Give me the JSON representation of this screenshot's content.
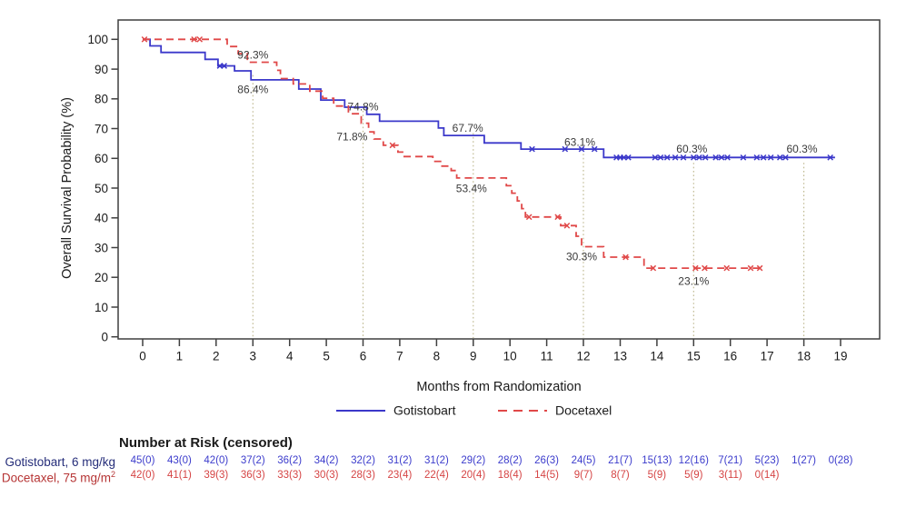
{
  "figure": {
    "background": "#ffffff"
  },
  "chart_data": {
    "type": "line",
    "subtype": "kaplan-meier-step",
    "title": "",
    "xlabel": "Months from Randomization",
    "ylabel": "Overall Survival Probability (%)",
    "xlim": [
      0,
      19
    ],
    "ylim": [
      0,
      100
    ],
    "xticks": [
      0,
      1,
      2,
      3,
      4,
      5,
      6,
      7,
      8,
      9,
      10,
      11,
      12,
      13,
      14,
      15,
      16,
      17,
      18,
      19
    ],
    "yticks": [
      0,
      10,
      20,
      30,
      40,
      50,
      60,
      70,
      80,
      90,
      100
    ],
    "grid_months": [
      3,
      6,
      9,
      12,
      15,
      18
    ],
    "grid_top_pct": [
      88,
      76,
      68.5,
      61.5,
      58.5,
      58.5
    ],
    "grid_color": "#bcb68c",
    "axis_color": "#3f3f3f",
    "annotation_color": "#3a3a3a",
    "series": [
      {
        "name": "Gotistobart",
        "color": "#3b38ca",
        "line_style": "solid",
        "steps": [
          [
            0.1,
            100
          ],
          [
            0.2,
            97.8
          ],
          [
            0.5,
            95.6
          ],
          [
            1.7,
            93.3
          ],
          [
            2.05,
            91.1
          ],
          [
            2.5,
            89.4
          ],
          [
            2.95,
            86.4
          ],
          [
            4.25,
            83.3
          ],
          [
            4.85,
            79.6
          ],
          [
            5.5,
            77.2
          ],
          [
            6.1,
            74.8
          ],
          [
            6.45,
            72.5
          ],
          [
            8.05,
            70.2
          ],
          [
            8.2,
            67.7
          ],
          [
            9.3,
            65.2
          ],
          [
            10.3,
            63.1
          ],
          [
            12.55,
            60.3
          ],
          [
            18.85,
            60.3
          ]
        ],
        "censor_marks": [
          [
            2.1,
            91.1
          ],
          [
            2.22,
            91.1
          ],
          [
            10.6,
            63.1
          ],
          [
            11.5,
            63.1
          ],
          [
            11.95,
            63.1
          ],
          [
            12.3,
            63.1
          ],
          [
            12.9,
            60.3
          ],
          [
            13.0,
            60.3
          ],
          [
            13.1,
            60.3
          ],
          [
            13.22,
            60.3
          ],
          [
            13.95,
            60.3
          ],
          [
            14.1,
            60.3
          ],
          [
            14.28,
            60.3
          ],
          [
            14.5,
            60.3
          ],
          [
            14.72,
            60.3
          ],
          [
            15.0,
            60.3
          ],
          [
            15.15,
            60.3
          ],
          [
            15.32,
            60.3
          ],
          [
            15.6,
            60.3
          ],
          [
            15.76,
            60.3
          ],
          [
            15.92,
            60.3
          ],
          [
            16.35,
            60.3
          ],
          [
            16.72,
            60.3
          ],
          [
            16.9,
            60.3
          ],
          [
            17.1,
            60.3
          ],
          [
            17.35,
            60.3
          ],
          [
            17.5,
            60.3
          ],
          [
            18.72,
            60.3
          ]
        ]
      },
      {
        "name": "Docetaxel",
        "color": "#e04848",
        "line_style": "dashed",
        "steps": [
          [
            0,
            100
          ],
          [
            2.3,
            97.6
          ],
          [
            2.6,
            95.2
          ],
          [
            2.85,
            92.3
          ],
          [
            3.65,
            89.6
          ],
          [
            3.75,
            86.8
          ],
          [
            4.1,
            85.0
          ],
          [
            4.55,
            82.6
          ],
          [
            4.9,
            80.2
          ],
          [
            5.2,
            77.6
          ],
          [
            5.6,
            75.0
          ],
          [
            5.95,
            71.8
          ],
          [
            6.15,
            68.9
          ],
          [
            6.3,
            66.5
          ],
          [
            6.55,
            64.4
          ],
          [
            6.95,
            62.1
          ],
          [
            7.1,
            60.6
          ],
          [
            7.9,
            59.0
          ],
          [
            8.15,
            57.4
          ],
          [
            8.4,
            55.9
          ],
          [
            8.55,
            53.4
          ],
          [
            9.9,
            50.8
          ],
          [
            10.05,
            48.3
          ],
          [
            10.2,
            45.7
          ],
          [
            10.32,
            43.1
          ],
          [
            10.42,
            40.3
          ],
          [
            11.38,
            37.4
          ],
          [
            11.8,
            33.8
          ],
          [
            11.95,
            30.3
          ],
          [
            12.55,
            26.8
          ],
          [
            13.65,
            23.1
          ],
          [
            16.85,
            23.1
          ]
        ],
        "censor_marks": [
          [
            0.05,
            100
          ],
          [
            1.4,
            100
          ],
          [
            1.55,
            100
          ],
          [
            6.8,
            64.4
          ],
          [
            10.52,
            40.3
          ],
          [
            11.3,
            40.3
          ],
          [
            11.55,
            37.4
          ],
          [
            13.15,
            26.8
          ],
          [
            13.9,
            23.1
          ],
          [
            15.05,
            23.1
          ],
          [
            15.3,
            23.1
          ],
          [
            15.9,
            23.1
          ],
          [
            16.55,
            23.1
          ],
          [
            16.8,
            23.1
          ]
        ]
      }
    ],
    "annotations": [
      {
        "text": "92.3%",
        "x": 3.0,
        "y": 94.7
      },
      {
        "text": "86.4%",
        "x": 3.0,
        "y": 83.2
      },
      {
        "text": "74.8%",
        "x": 6.0,
        "y": 77.4
      },
      {
        "text": "71.8%",
        "x": 5.7,
        "y": 67.3
      },
      {
        "text": "67.7%",
        "x": 8.85,
        "y": 70.1
      },
      {
        "text": "53.4%",
        "x": 8.95,
        "y": 49.9
      },
      {
        "text": "63.1%",
        "x": 11.9,
        "y": 65.5
      },
      {
        "text": "30.3%",
        "x": 11.95,
        "y": 26.9
      },
      {
        "text": "60.3%",
        "x": 14.95,
        "y": 63.2
      },
      {
        "text": "23.1%",
        "x": 15.0,
        "y": 18.7
      },
      {
        "text": "60.3%",
        "x": 17.95,
        "y": 63.2
      }
    ],
    "legend_position": "bottom-center",
    "grid": "dotted-droplines"
  },
  "legend": {
    "items": [
      {
        "label": "Gotistobart",
        "style": "solid",
        "color": "#3b38ca"
      },
      {
        "label": "Docetaxel",
        "style": "dashed",
        "color": "#e04848"
      }
    ]
  },
  "risk_table": {
    "title": "Number at Risk (censored)",
    "rows": [
      {
        "label": "Gotistobart, 6 mg/kg",
        "label_sup": "",
        "label_color": "#262e7a",
        "value_color": "#3c3ccc",
        "values": [
          "45(0)",
          "43(0)",
          "42(0)",
          "37(2)",
          "36(2)",
          "34(2)",
          "32(2)",
          "31(2)",
          "31(2)",
          "29(2)",
          "28(2)",
          "26(3)",
          "24(5)",
          "21(7)",
          "15(13)",
          "12(16)",
          "7(21)",
          "5(23)",
          "1(27)",
          "0(28)"
        ]
      },
      {
        "label": "Docetaxel, 75 mg/m",
        "label_sup": "2",
        "label_color": "#b63535",
        "value_color": "#d54444",
        "values": [
          "42(0)",
          "41(1)",
          "39(3)",
          "36(3)",
          "33(3)",
          "30(3)",
          "28(3)",
          "23(4)",
          "22(4)",
          "20(4)",
          "18(4)",
          "14(5)",
          "9(7)",
          "8(7)",
          "5(9)",
          "5(9)",
          "3(11)",
          "0(14)"
        ]
      }
    ]
  }
}
